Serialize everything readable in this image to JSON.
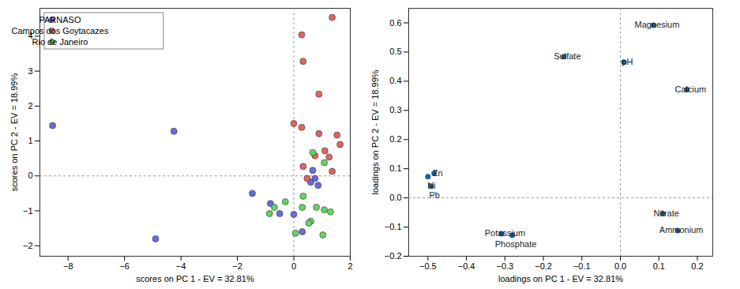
{
  "chart_data": [
    {
      "type": "scatter",
      "x_label": "scores on PC 1 - EV = 32.81%",
      "y_label": "scores on PC 2 - EV = 18.99%",
      "xlim": [
        -9,
        2
      ],
      "xticks": [
        -8,
        -6,
        -4,
        -2,
        0,
        2
      ],
      "ylim": [
        -2.3,
        4.8
      ],
      "yticks": [
        -2,
        -1,
        0,
        1,
        2,
        3,
        4
      ],
      "grid": false,
      "legend": "northwest",
      "marker": "circle",
      "series": [
        {
          "name": "PARNASO",
          "color": "#6b6bdc",
          "x": [
            -8.55,
            -4.25,
            -4.9,
            -1.47,
            -0.83,
            -0.5,
            0.0,
            0.3,
            0.6,
            0.75,
            0.86,
            0.67
          ],
          "y": [
            1.44,
            1.28,
            -1.8,
            -0.5,
            -0.79,
            -1.08,
            -1.1,
            -1.6,
            -0.18,
            -0.07,
            -0.27,
            0.16
          ]
        },
        {
          "name": "Campos dos Goytacazes",
          "color": "#e06464",
          "x": [
            1.36,
            0.28,
            0.33,
            0.89,
            0.0,
            0.28,
            0.89,
            1.53,
            1.64,
            1.1,
            0.75,
            1.25,
            1.36,
            0.33,
            0.47
          ],
          "y": [
            4.54,
            4.04,
            3.28,
            2.34,
            1.5,
            1.39,
            1.21,
            1.17,
            0.9,
            0.72,
            0.58,
            0.54,
            0.13,
            0.27,
            -0.07
          ]
        },
        {
          "name": "Rio de Janeiro",
          "color": "#64d464",
          "x": [
            0.67,
            1.08,
            -0.69,
            -0.86,
            -0.3,
            0.33,
            0.8,
            1.08,
            1.3,
            0.6,
            0.06,
            1.03,
            0.3,
            0.53
          ],
          "y": [
            0.67,
            0.38,
            -0.9,
            -1.08,
            -0.74,
            -0.58,
            -0.9,
            -0.97,
            -1.03,
            -1.3,
            -1.64,
            -1.69,
            -0.9,
            -1.35
          ]
        }
      ]
    },
    {
      "type": "scatter",
      "x_label": "loadings on PC 1 - EV = 32.81%",
      "y_label": "loadings on PC 2 - EV = 18.99%",
      "xlim": [
        -0.55,
        0.24
      ],
      "xticks": [
        -0.5,
        -0.4,
        -0.3,
        -0.2,
        -0.1,
        0,
        0.1,
        0.2
      ],
      "ylim": [
        -0.2,
        0.65
      ],
      "yticks": [
        -0.2,
        -0.1,
        0,
        0.1,
        0.2,
        0.3,
        0.4,
        0.5,
        0.6
      ],
      "grid": false,
      "color": "#1f5f99",
      "marker": "circle",
      "labels": [
        "Magnesium",
        "Sulfate",
        "pH",
        "Calcium",
        "Zn",
        "Ni",
        "Pb",
        "Nitrate",
        "Ammonium",
        "Potassium",
        "Phosphate"
      ],
      "x": [
        0.086,
        -0.147,
        0.009,
        0.173,
        -0.484,
        -0.5,
        -0.492,
        0.11,
        0.149,
        -0.309,
        -0.281
      ],
      "y": [
        0.592,
        0.484,
        0.465,
        0.371,
        0.084,
        0.073,
        0.04,
        -0.054,
        -0.112,
        -0.123,
        -0.128
      ]
    }
  ]
}
